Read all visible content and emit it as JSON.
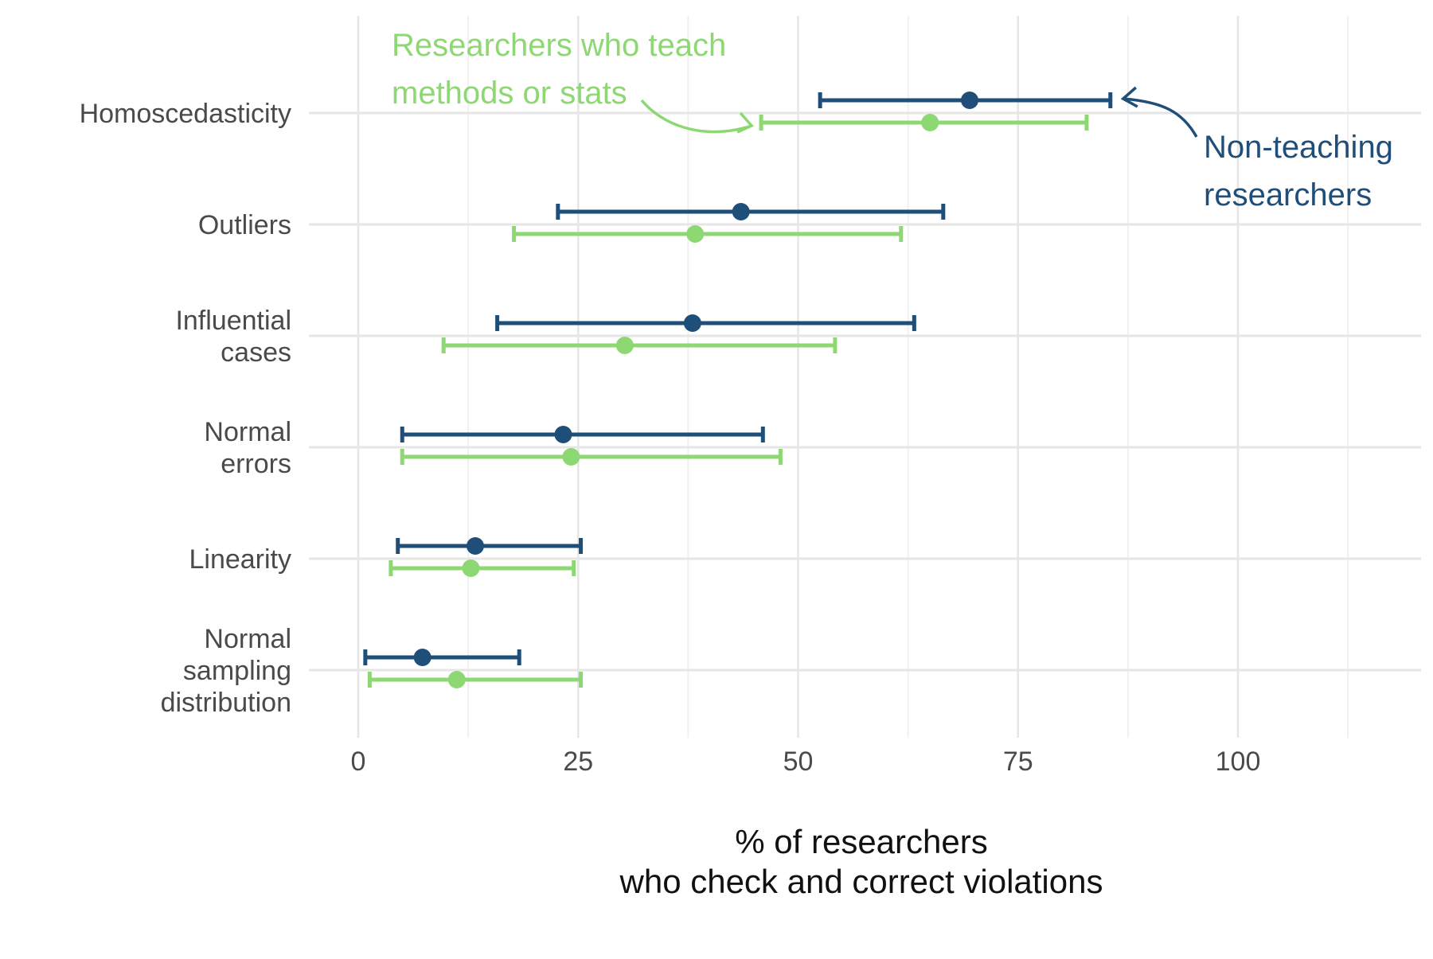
{
  "chart_data": {
    "type": "errorbar",
    "title": "",
    "xlabel": "% of researchers who check and correct violations",
    "xlabel_lines": [
      "% of researchers",
      "who check and correct violations"
    ],
    "ylabel": "",
    "xlim": [
      -3,
      120
    ],
    "xticks": [
      0,
      25,
      50,
      75,
      100
    ],
    "x_minor_gridlines": [
      12.5,
      37.5,
      62.5,
      87.5,
      112.5
    ],
    "grid": true,
    "legend": "none (direct annotations)",
    "categories": [
      {
        "label": "Homoscedasticity",
        "lines": [
          "Homoscedasticity"
        ]
      },
      {
        "label": "Outliers",
        "lines": [
          "Outliers"
        ]
      },
      {
        "label": "Influential cases",
        "lines": [
          "Influential",
          "cases"
        ]
      },
      {
        "label": "Normal errors",
        "lines": [
          "Normal",
          "errors"
        ]
      },
      {
        "label": "Linearity",
        "lines": [
          "Linearity"
        ]
      },
      {
        "label": "Normal sampling distribution",
        "lines": [
          "Normal",
          "sampling",
          "distribution"
        ]
      }
    ],
    "series": [
      {
        "key": "non_teaching",
        "color": "#1f4e79",
        "points": [
          {
            "estimate": 69.5,
            "low": 52.5,
            "high": 85.5
          },
          {
            "estimate": 43.5,
            "low": 22.7,
            "high": 66.5
          },
          {
            "estimate": 38.0,
            "low": 15.8,
            "high": 63.2
          },
          {
            "estimate": 23.3,
            "low": 5.0,
            "high": 46.0
          },
          {
            "estimate": 13.3,
            "low": 4.5,
            "high": 25.3
          },
          {
            "estimate": 7.3,
            "low": 0.8,
            "high": 18.3
          }
        ]
      },
      {
        "key": "teaching",
        "color": "#8dd873",
        "points": [
          {
            "estimate": 65.0,
            "low": 45.8,
            "high": 82.8
          },
          {
            "estimate": 38.3,
            "low": 17.7,
            "high": 61.7
          },
          {
            "estimate": 30.3,
            "low": 9.7,
            "high": 54.2
          },
          {
            "estimate": 24.2,
            "low": 5.0,
            "high": 48.0
          },
          {
            "estimate": 12.8,
            "low": 3.7,
            "high": 24.5
          },
          {
            "estimate": 11.2,
            "low": 1.3,
            "high": 25.3
          }
        ]
      }
    ],
    "annotations": [
      {
        "series": "teaching",
        "lines": [
          "Researchers who teach",
          "methods or stats"
        ],
        "color": "#8dd873"
      },
      {
        "series": "non_teaching",
        "lines": [
          "Non-teaching",
          "researchers"
        ],
        "color": "#1f4e79"
      }
    ]
  }
}
